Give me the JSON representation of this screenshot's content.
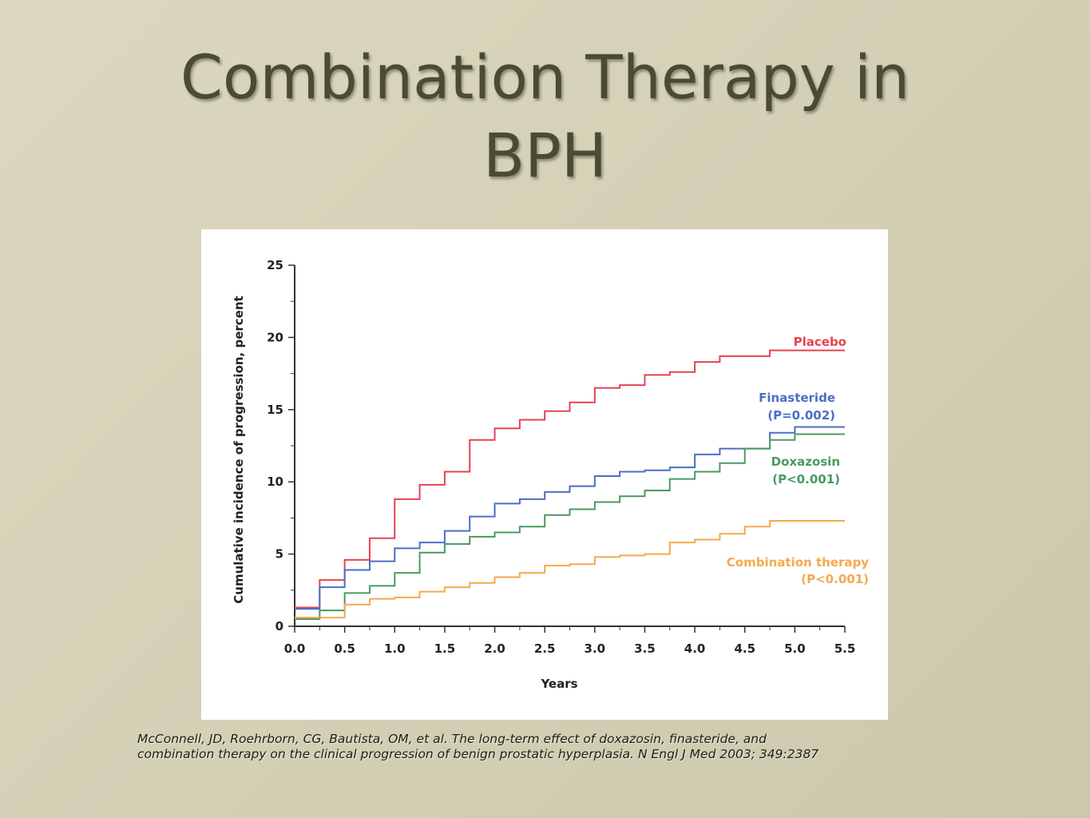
{
  "slide": {
    "title_line1": "Combination Therapy in",
    "title_line2": "BPH",
    "citation_line1": "McConnell, JD, Roehrborn, CG, Bautista, OM, et al. The long-term effect of doxazosin, finasteride, and",
    "citation_line2": "combination therapy on the clinical progression of benign prostatic hyperplasia. N Engl J Med 2003; 349:2387"
  },
  "chart_data": {
    "type": "line",
    "title": "",
    "xlabel": "Years",
    "ylabel": "Cumulative incidence of progression, percent",
    "xlim": [
      0,
      5.5
    ],
    "ylim": [
      0,
      25
    ],
    "x_ticks": [
      "0.0",
      "0.5",
      "1.0",
      "1.5",
      "2.0",
      "2.5",
      "3.0",
      "3.5",
      "4.0",
      "4.5",
      "5.0",
      "5.5"
    ],
    "y_ticks": [
      "0",
      "5",
      "10",
      "15",
      "20",
      "25"
    ],
    "step": true,
    "series": [
      {
        "name": "Placebo",
        "label_lines": [
          "Placebo"
        ],
        "color": "#e8424e",
        "points": [
          [
            0,
            1.3
          ],
          [
            0.25,
            3.2
          ],
          [
            0.5,
            4.6
          ],
          [
            0.75,
            6.1
          ],
          [
            1.0,
            8.8
          ],
          [
            1.25,
            9.8
          ],
          [
            1.5,
            10.7
          ],
          [
            1.75,
            12.9
          ],
          [
            2.0,
            13.7
          ],
          [
            2.25,
            14.3
          ],
          [
            2.5,
            14.9
          ],
          [
            2.75,
            15.5
          ],
          [
            3.0,
            16.5
          ],
          [
            3.25,
            16.7
          ],
          [
            3.5,
            17.4
          ],
          [
            3.75,
            17.6
          ],
          [
            4.0,
            18.3
          ],
          [
            4.25,
            18.7
          ],
          [
            4.75,
            19.1
          ],
          [
            5.5,
            19.1
          ]
        ]
      },
      {
        "name": "Finasteride",
        "label_lines": [
          "Finasteride",
          "(P=0.002)"
        ],
        "color": "#4a6fc6",
        "points": [
          [
            0,
            1.2
          ],
          [
            0.25,
            2.7
          ],
          [
            0.5,
            3.9
          ],
          [
            0.75,
            4.5
          ],
          [
            1.0,
            5.4
          ],
          [
            1.25,
            5.8
          ],
          [
            1.5,
            6.6
          ],
          [
            1.75,
            7.6
          ],
          [
            2.0,
            8.5
          ],
          [
            2.25,
            8.8
          ],
          [
            2.5,
            9.3
          ],
          [
            2.75,
            9.7
          ],
          [
            3.0,
            10.4
          ],
          [
            3.25,
            10.7
          ],
          [
            3.5,
            10.8
          ],
          [
            3.75,
            11.0
          ],
          [
            4.0,
            11.9
          ],
          [
            4.25,
            12.3
          ],
          [
            4.75,
            13.4
          ],
          [
            5.0,
            13.8
          ],
          [
            5.5,
            13.8
          ]
        ]
      },
      {
        "name": "Doxazosin",
        "label_lines": [
          "Doxazosin",
          "(P<0.001)"
        ],
        "color": "#4a9a62",
        "points": [
          [
            0,
            0.5
          ],
          [
            0.25,
            1.1
          ],
          [
            0.5,
            2.3
          ],
          [
            0.75,
            2.8
          ],
          [
            1.0,
            3.7
          ],
          [
            1.25,
            5.1
          ],
          [
            1.5,
            5.7
          ],
          [
            1.75,
            6.2
          ],
          [
            2.0,
            6.5
          ],
          [
            2.25,
            6.9
          ],
          [
            2.5,
            7.7
          ],
          [
            2.75,
            8.1
          ],
          [
            3.0,
            8.6
          ],
          [
            3.25,
            9.0
          ],
          [
            3.5,
            9.4
          ],
          [
            3.75,
            10.2
          ],
          [
            4.0,
            10.7
          ],
          [
            4.25,
            11.3
          ],
          [
            4.5,
            12.3
          ],
          [
            4.75,
            12.9
          ],
          [
            5.0,
            13.3
          ],
          [
            5.5,
            13.3
          ]
        ]
      },
      {
        "name": "Combination therapy",
        "label_lines": [
          "Combination therapy",
          "(P<0.001)"
        ],
        "color": "#f5a94e",
        "points": [
          [
            0,
            0.6
          ],
          [
            0.5,
            1.5
          ],
          [
            0.75,
            1.9
          ],
          [
            1.0,
            2.0
          ],
          [
            1.25,
            2.4
          ],
          [
            1.5,
            2.7
          ],
          [
            1.75,
            3.0
          ],
          [
            2.0,
            3.4
          ],
          [
            2.25,
            3.7
          ],
          [
            2.5,
            4.2
          ],
          [
            2.75,
            4.3
          ],
          [
            3.0,
            4.8
          ],
          [
            3.25,
            4.9
          ],
          [
            3.5,
            5.0
          ],
          [
            3.75,
            5.8
          ],
          [
            4.0,
            6.0
          ],
          [
            4.25,
            6.4
          ],
          [
            4.5,
            6.9
          ],
          [
            4.75,
            7.3
          ],
          [
            5.5,
            7.3
          ]
        ]
      }
    ]
  }
}
